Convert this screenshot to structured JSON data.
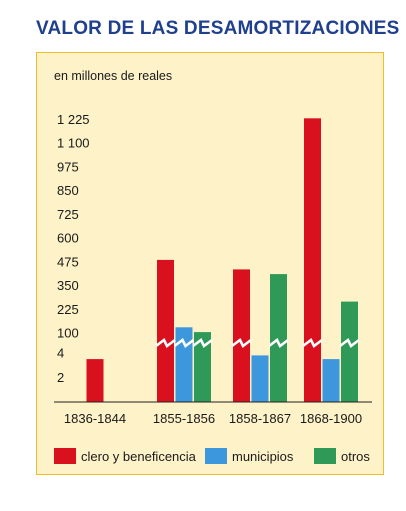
{
  "chart_data": {
    "type": "bar",
    "title": "VALOR DE LAS DESAMORTIZACIONES",
    "ylabel": "en millones de reales",
    "xlabel": "",
    "y_tick_labels": [
      "2",
      "4",
      "100",
      "225",
      "350",
      "475",
      "600",
      "725",
      "850",
      "975",
      "1 100",
      "1 225"
    ],
    "y_scale": "broken (lower segment 0–4, upper segment 100–1 225)",
    "categories": [
      "1836-1844",
      "1855-1856",
      "1858-1867",
      "1868-1900"
    ],
    "series": [
      {
        "name": "clero y beneficencia",
        "color": "#d9101e",
        "values": [
          3.5,
          485,
          435,
          1230
        ]
      },
      {
        "name": "municipios",
        "color": "#3c97dc",
        "values": [
          null,
          130,
          3.8,
          3.5
        ]
      },
      {
        "name": "otros",
        "color": "#2f9a58",
        "values": [
          null,
          105,
          410,
          265
        ]
      }
    ],
    "legend": "bottom",
    "grid": false
  }
}
